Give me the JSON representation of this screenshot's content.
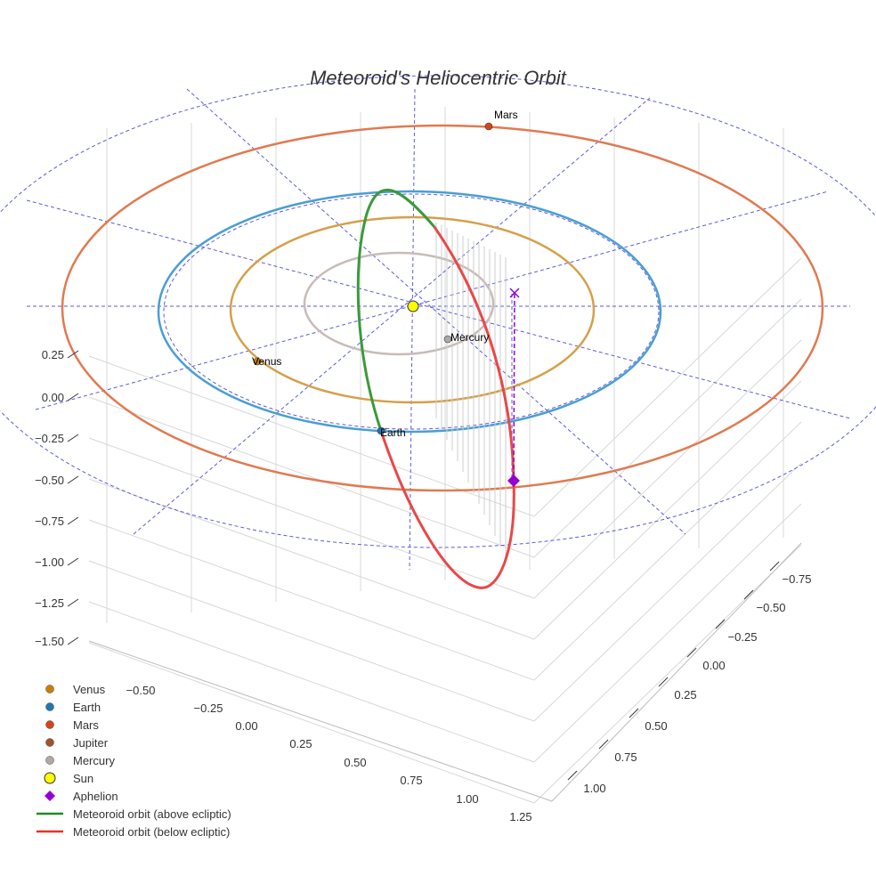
{
  "chart_data": {
    "type": "scatter3d",
    "title": "Meteoroid's Heliocentric Orbit",
    "axes": {
      "x": {
        "ticks": [
          "−0.50",
          "−0.25",
          "0.00",
          "0.25",
          "0.50",
          "0.75",
          "1.00",
          "1.25"
        ]
      },
      "y": {
        "ticks": [
          "−0.75",
          "−0.50",
          "−0.25",
          "0.00",
          "0.25",
          "0.50",
          "0.75",
          "1.00"
        ]
      },
      "z": {
        "ticks": [
          "0.25",
          "0.00",
          "−0.25",
          "−0.50",
          "−0.75",
          "−1.00",
          "−1.25",
          "−1.50"
        ]
      }
    },
    "planets": [
      {
        "name": "Venus",
        "label": "Venus",
        "color": "#c87f0a",
        "orbit_color": "#d4a04a"
      },
      {
        "name": "Earth",
        "label": "Earth",
        "color": "#1f77b4",
        "orbit_color": "#4a9ed4"
      },
      {
        "name": "Mars",
        "label": "Mars",
        "color": "#d2461a",
        "orbit_color": "#e07a50"
      },
      {
        "name": "Mercury",
        "label": "Mercury",
        "color": "#a9a9a9",
        "orbit_color": "#c8bcb8"
      }
    ],
    "legend": {
      "placement": "bottom-left",
      "items": [
        {
          "label": "Venus",
          "kind": "dot",
          "color": "#c87f0a"
        },
        {
          "label": "Earth",
          "kind": "dot",
          "color": "#1f77b4"
        },
        {
          "label": "Mars",
          "kind": "dot",
          "color": "#d2461a"
        },
        {
          "label": "Jupiter",
          "kind": "dot",
          "color": "#a0522d"
        },
        {
          "label": "Mercury",
          "kind": "dot",
          "color": "#b0a8a4"
        },
        {
          "label": "Sun",
          "kind": "sun",
          "color": "#ffff00"
        },
        {
          "label": "Aphelion",
          "kind": "diamond",
          "color": "#9400d3"
        },
        {
          "label": "Meteoroid orbit (above ecliptic)",
          "kind": "line",
          "color": "#228b22"
        },
        {
          "label": "Meteoroid orbit (below ecliptic)",
          "kind": "line",
          "color": "#e8302a"
        }
      ]
    },
    "series_colors": {
      "above": "#3a9a3a",
      "below": "#e84848",
      "aphelion": "#9400d3",
      "guide": "#5a5ae0"
    }
  }
}
